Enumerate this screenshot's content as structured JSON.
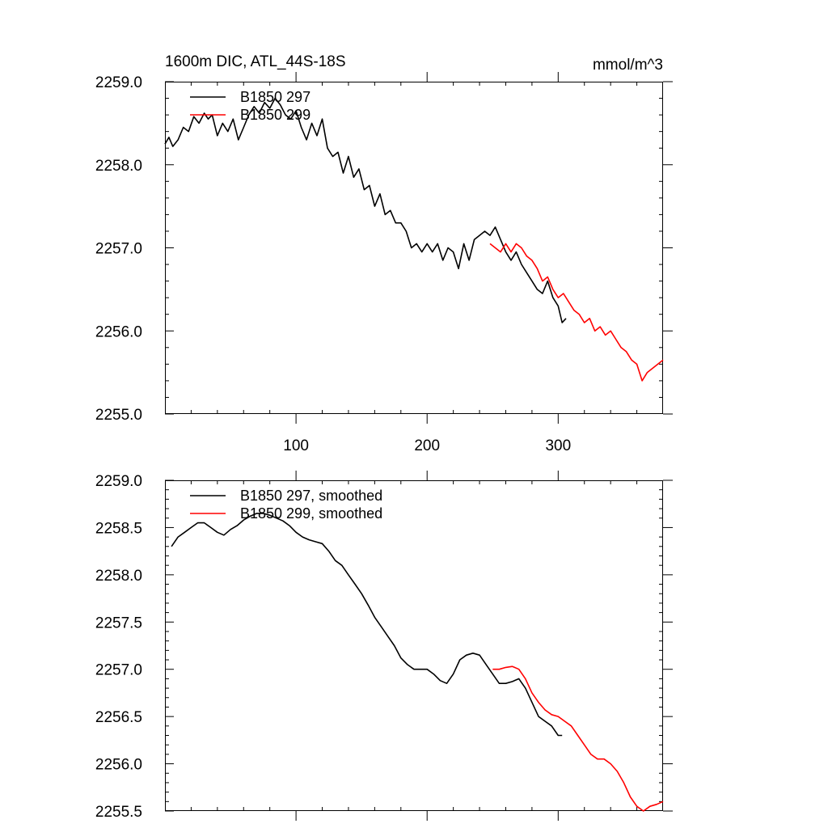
{
  "header": {
    "title": "1600m DIC, ATL_44S-18S",
    "units": "mmol/m^3"
  },
  "colors": {
    "run_297": "#000000",
    "run_299": "#ff0000"
  },
  "chart_data": [
    {
      "type": "line",
      "name": "raw",
      "xlim": [
        0,
        380
      ],
      "ylim": [
        2255.0,
        2259.0
      ],
      "xticks": [
        100,
        200,
        300
      ],
      "xtick_labels": [
        "100",
        "200",
        "300"
      ],
      "yticks": [
        2255.0,
        2256.0,
        2257.0,
        2258.0,
        2259.0
      ],
      "ytick_labels": [
        "2255.0",
        "2256.0",
        "2257.0",
        "2258.0",
        "2259.0"
      ],
      "legend": [
        "B1850 297",
        "B1850 299"
      ],
      "legend_position": "top-left",
      "series": [
        {
          "name": "B1850 297",
          "color_key": "run_297",
          "x": [
            0,
            3,
            6,
            10,
            14,
            18,
            22,
            26,
            30,
            33,
            36,
            40,
            44,
            48,
            52,
            56,
            60,
            64,
            68,
            72,
            76,
            80,
            84,
            88,
            92,
            96,
            100,
            104,
            108,
            112,
            116,
            120,
            124,
            128,
            132,
            136,
            140,
            144,
            148,
            152,
            156,
            160,
            164,
            168,
            172,
            176,
            180,
            184,
            188,
            192,
            196,
            200,
            204,
            208,
            212,
            216,
            220,
            224,
            228,
            232,
            236,
            240,
            244,
            248,
            252,
            256,
            260,
            264,
            268,
            272,
            276,
            280,
            284,
            288,
            292,
            296,
            300,
            303,
            306
          ],
          "values": [
            2258.25,
            2258.33,
            2258.22,
            2258.3,
            2258.45,
            2258.4,
            2258.58,
            2258.5,
            2258.62,
            2258.55,
            2258.6,
            2258.35,
            2258.5,
            2258.4,
            2258.55,
            2258.3,
            2258.45,
            2258.6,
            2258.7,
            2258.62,
            2258.75,
            2258.68,
            2258.8,
            2258.72,
            2258.6,
            2258.55,
            2258.65,
            2258.45,
            2258.3,
            2258.5,
            2258.35,
            2258.55,
            2258.2,
            2258.1,
            2258.15,
            2257.9,
            2258.1,
            2257.85,
            2257.95,
            2257.7,
            2257.75,
            2257.5,
            2257.65,
            2257.4,
            2257.45,
            2257.3,
            2257.3,
            2257.2,
            2257.0,
            2257.05,
            2256.95,
            2257.05,
            2256.95,
            2257.05,
            2256.85,
            2257.0,
            2256.95,
            2256.75,
            2257.05,
            2256.85,
            2257.1,
            2257.15,
            2257.2,
            2257.15,
            2257.25,
            2257.1,
            2256.95,
            2256.85,
            2256.95,
            2256.8,
            2256.7,
            2256.6,
            2256.5,
            2256.45,
            2256.6,
            2256.4,
            2256.3,
            2256.1,
            2256.15
          ]
        },
        {
          "name": "B1850 299",
          "color_key": "run_299",
          "x": [
            248,
            252,
            256,
            260,
            264,
            268,
            272,
            276,
            280,
            284,
            288,
            292,
            296,
            300,
            304,
            308,
            312,
            316,
            320,
            324,
            328,
            332,
            336,
            340,
            344,
            348,
            352,
            356,
            360,
            364,
            368,
            372,
            376,
            380
          ],
          "values": [
            2257.05,
            2257.0,
            2256.95,
            2257.05,
            2256.95,
            2257.05,
            2257.0,
            2256.9,
            2256.85,
            2256.75,
            2256.6,
            2256.65,
            2256.5,
            2256.4,
            2256.45,
            2256.35,
            2256.25,
            2256.2,
            2256.1,
            2256.15,
            2256.0,
            2256.05,
            2255.95,
            2256.0,
            2255.9,
            2255.8,
            2255.75,
            2255.65,
            2255.6,
            2255.4,
            2255.5,
            2255.55,
            2255.6,
            2255.65
          ]
        }
      ]
    },
    {
      "type": "line",
      "name": "smoothed",
      "xlim": [
        0,
        380
      ],
      "ylim": [
        2255.5,
        2259.0
      ],
      "xticks": [
        100,
        200,
        300
      ],
      "yticks": [
        2255.5,
        2256.0,
        2256.5,
        2257.0,
        2257.5,
        2258.0,
        2258.5,
        2259.0
      ],
      "ytick_labels": [
        "2255.5",
        "2256.0",
        "2256.5",
        "2257.0",
        "2257.5",
        "2258.0",
        "2258.5",
        "2259.0"
      ],
      "legend": [
        "B1850 297, smoothed",
        "B1850 299, smoothed"
      ],
      "legend_position": "top-left",
      "series": [
        {
          "name": "B1850 297, smoothed",
          "color_key": "run_297",
          "x": [
            5,
            10,
            15,
            20,
            25,
            30,
            35,
            40,
            45,
            50,
            55,
            60,
            65,
            70,
            75,
            80,
            85,
            90,
            95,
            100,
            105,
            110,
            115,
            120,
            125,
            130,
            135,
            140,
            145,
            150,
            155,
            160,
            165,
            170,
            175,
            180,
            185,
            190,
            195,
            200,
            205,
            210,
            215,
            220,
            225,
            230,
            235,
            240,
            245,
            250,
            255,
            260,
            265,
            270,
            275,
            280,
            285,
            290,
            295,
            300,
            303
          ],
          "values": [
            2258.3,
            2258.4,
            2258.45,
            2258.5,
            2258.55,
            2258.55,
            2258.5,
            2258.45,
            2258.42,
            2258.48,
            2258.52,
            2258.58,
            2258.62,
            2258.65,
            2258.65,
            2258.63,
            2258.6,
            2258.57,
            2258.52,
            2258.45,
            2258.4,
            2258.37,
            2258.35,
            2258.33,
            2258.25,
            2258.15,
            2258.1,
            2258.0,
            2257.9,
            2257.8,
            2257.68,
            2257.55,
            2257.45,
            2257.35,
            2257.25,
            2257.12,
            2257.05,
            2257.0,
            2257.0,
            2257.0,
            2256.95,
            2256.88,
            2256.85,
            2256.95,
            2257.1,
            2257.15,
            2257.17,
            2257.15,
            2257.05,
            2256.95,
            2256.85,
            2256.85,
            2256.87,
            2256.9,
            2256.8,
            2256.65,
            2256.5,
            2256.45,
            2256.4,
            2256.3,
            2256.3
          ]
        },
        {
          "name": "B1850 299, smoothed",
          "color_key": "run_299",
          "x": [
            250,
            255,
            260,
            265,
            270,
            275,
            280,
            285,
            290,
            295,
            300,
            305,
            310,
            315,
            320,
            325,
            330,
            335,
            340,
            345,
            350,
            355,
            360,
            365,
            370,
            375,
            380
          ],
          "values": [
            2257.0,
            2257.0,
            2257.02,
            2257.03,
            2257.0,
            2256.9,
            2256.75,
            2256.65,
            2256.57,
            2256.52,
            2256.5,
            2256.45,
            2256.4,
            2256.3,
            2256.2,
            2256.1,
            2256.05,
            2256.05,
            2256.0,
            2255.92,
            2255.8,
            2255.65,
            2255.55,
            2255.5,
            2255.55,
            2255.57,
            2255.6
          ]
        }
      ]
    }
  ]
}
